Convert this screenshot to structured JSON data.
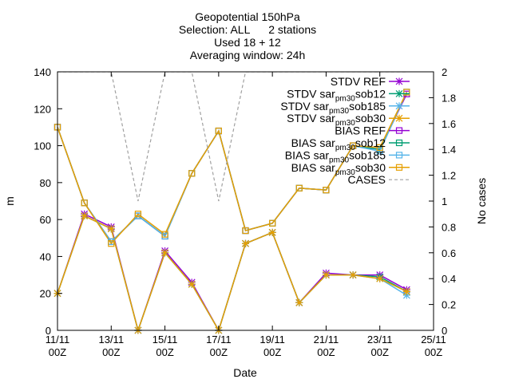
{
  "chart_data": {
    "type": "line",
    "title_lines": [
      "Geopotential 150hPa",
      "Selection: ALL      2 stations",
      "Used 18 + 12",
      "Averaging window: 24h"
    ],
    "xlabel": "Date",
    "ylabel": "m",
    "y2label": "No cases",
    "xlim": [
      0,
      14
    ],
    "ylim": [
      0,
      140
    ],
    "y2lim": [
      0,
      2
    ],
    "x_ticks": [
      {
        "pos": 0,
        "line1": "11/11",
        "line2": "00Z"
      },
      {
        "pos": 2,
        "line1": "13/11",
        "line2": "00Z"
      },
      {
        "pos": 4,
        "line1": "15/11",
        "line2": "00Z"
      },
      {
        "pos": 6,
        "line1": "17/11",
        "line2": "00Z"
      },
      {
        "pos": 8,
        "line1": "19/11",
        "line2": "00Z"
      },
      {
        "pos": 10,
        "line1": "21/11",
        "line2": "00Z"
      },
      {
        "pos": 12,
        "line1": "23/11",
        "line2": "00Z"
      },
      {
        "pos": 14,
        "line1": "25/11",
        "line2": "00Z"
      }
    ],
    "y_ticks": [
      0,
      20,
      40,
      60,
      80,
      100,
      120,
      140
    ],
    "y2_ticks": [
      0,
      0.2,
      0.4,
      0.6,
      0.8,
      1,
      1.2,
      1.4,
      1.6,
      1.8,
      2
    ],
    "x": [
      0,
      1,
      2,
      3,
      4,
      5,
      6,
      7,
      8,
      9,
      10,
      11,
      12,
      13
    ],
    "legend_position": "top-right",
    "series": [
      {
        "name": "STDV REF",
        "color": "#9400d3",
        "marker": "star",
        "axis": "y",
        "values": [
          20,
          63,
          56,
          0,
          43,
          26,
          0,
          47,
          53,
          15,
          31,
          30,
          30,
          22
        ]
      },
      {
        "name": "STDV sar_pm30_sob12",
        "color": "#009e73",
        "marker": "star",
        "axis": "y",
        "values": [
          20,
          62,
          55,
          0,
          42,
          25,
          0,
          47,
          53,
          15,
          30,
          30,
          29,
          21
        ]
      },
      {
        "name": "STDV sar_pm30_sob185",
        "color": "#56b4e9",
        "marker": "star",
        "axis": "y",
        "values": [
          20,
          62,
          55,
          0,
          42,
          25,
          0,
          47,
          53,
          15,
          30,
          30,
          28,
          19
        ]
      },
      {
        "name": "STDV sar_pm30_sob30",
        "color": "#e69f00",
        "marker": "star",
        "axis": "y",
        "values": [
          20,
          62,
          55,
          0,
          42,
          25,
          0,
          47,
          53,
          15,
          30,
          30,
          28,
          21
        ]
      },
      {
        "name": "BIAS REF",
        "color": "#9400d3",
        "marker": "square",
        "axis": "y",
        "values": [
          110,
          69,
          48,
          62,
          51,
          85,
          108,
          54,
          58,
          77,
          76,
          100,
          98,
          128
        ]
      },
      {
        "name": "BIAS sar_pm30_sob12",
        "color": "#009e73",
        "marker": "square",
        "axis": "y",
        "values": [
          110,
          69,
          48,
          62,
          51,
          85,
          108,
          54,
          58,
          77,
          76,
          100,
          98,
          129
        ]
      },
      {
        "name": "BIAS sar_pm30_sob185",
        "color": "#56b4e9",
        "marker": "square",
        "axis": "y",
        "values": [
          110,
          69,
          48,
          62,
          51,
          85,
          108,
          54,
          58,
          77,
          76,
          100,
          97,
          129
        ]
      },
      {
        "name": "BIAS sar_pm30_sob30",
        "color": "#e69f00",
        "marker": "square",
        "axis": "y",
        "values": [
          110,
          69,
          47,
          63,
          52,
          85,
          108,
          54,
          58,
          77,
          76,
          100,
          99,
          129
        ]
      },
      {
        "name": "CASES",
        "color": "#a0a0a0",
        "marker": "none",
        "dash": true,
        "axis": "y2",
        "values": [
          2,
          2,
          2,
          1,
          2,
          2,
          1,
          2,
          2,
          2,
          2,
          2,
          2,
          2
        ]
      }
    ]
  }
}
